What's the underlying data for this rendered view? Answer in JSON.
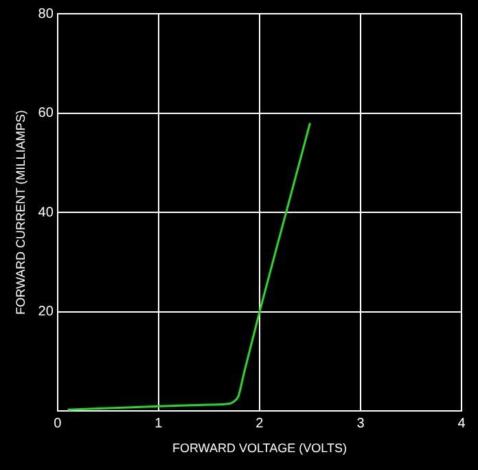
{
  "chart_data": {
    "type": "line",
    "xlabel": "FORWARD VOLTAGE (VOLTS)",
    "ylabel": "FORWARD CURRENT (MILLIAMPS)",
    "x": [
      0.1,
      0.5,
      1.0,
      1.5,
      1.7,
      1.75,
      1.79,
      1.85,
      2.0,
      2.25,
      2.5
    ],
    "series": [
      {
        "color": "#22dd22",
        "values": [
          0.3,
          0.6,
          1.0,
          1.3,
          1.5,
          2.0,
          3.0,
          8.0,
          20,
          39,
          58
        ]
      }
    ],
    "xlim": [
      0,
      4
    ],
    "xticks": [
      0,
      1,
      2,
      3,
      4
    ],
    "ylim": [
      0,
      80
    ],
    "yticks": [
      {
        "value": 0,
        "label": null
      },
      20,
      40,
      60,
      80
    ],
    "grid": true,
    "legend": false,
    "marker": "none",
    "line_style": "solid"
  }
}
